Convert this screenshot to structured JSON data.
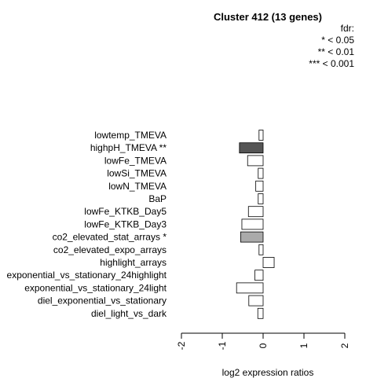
{
  "chart_data": {
    "type": "bar",
    "orientation": "horizontal",
    "title": "Cluster 412 (13 genes)",
    "xlabel": "log2 expression ratios",
    "xlim": [
      -2,
      2
    ],
    "xticks": [
      "-2",
      "-1",
      "0",
      "1",
      "2"
    ],
    "legend": {
      "title": "fdr:",
      "entries": [
        "* < 0.05",
        "** < 0.01",
        "*** < 0.001"
      ],
      "placement": "top-right"
    },
    "categories": [
      "lowtemp_TMEVA",
      "highpH_TMEVA **",
      "lowFe_TMEVA",
      "lowSi_TMEVA",
      "lowN_TMEVA",
      "BaP",
      "lowFe_KTKB_Day5",
      "lowFe_KTKB_Day3",
      "co2_elevated_stat_arrays *",
      "co2_elevated_expo_arrays",
      "highlight_arrays",
      "exponential_vs_stationary_24highlight",
      "exponential_vs_stationary_24light",
      "diel_exponential_vs_stationary",
      "diel_light_vs_dark"
    ],
    "values": [
      -0.1,
      -0.58,
      -0.38,
      -0.12,
      -0.18,
      -0.12,
      -0.36,
      -0.52,
      -0.55,
      -0.1,
      0.27,
      -0.2,
      -0.65,
      -0.35,
      -0.13
    ],
    "colors": [
      "#ffffff",
      "#555555",
      "#ffffff",
      "#ffffff",
      "#ffffff",
      "#ffffff",
      "#ffffff",
      "#ffffff",
      "#aaaaaa",
      "#ffffff",
      "#ffffff",
      "#ffffff",
      "#ffffff",
      "#ffffff",
      "#ffffff"
    ]
  }
}
